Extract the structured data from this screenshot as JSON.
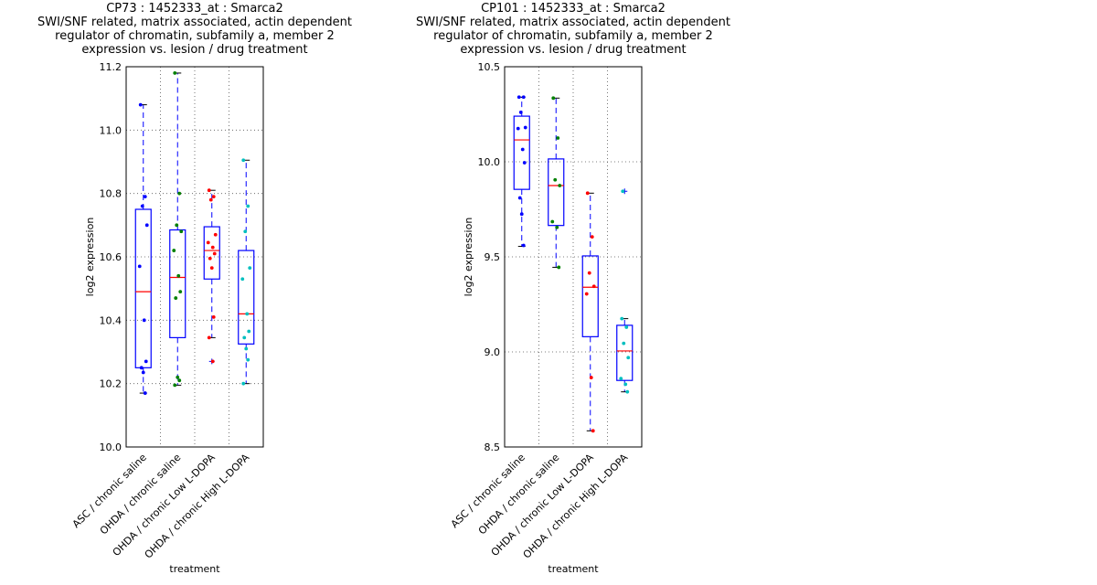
{
  "chart_data": [
    {
      "type": "boxplot",
      "title_lines": [
        "CP73 : 1452333_at : Smarca2",
        "SWI/SNF related, matrix associated, actin dependent regulator of chromatin, subfamily a, member 2",
        "expression vs. lesion / drug treatment"
      ],
      "xlabel": "treatment",
      "ylabel": "log2 expression",
      "ylim": [
        10.0,
        11.2
      ],
      "yticks": [
        "10.0",
        "10.2",
        "10.4",
        "10.6",
        "10.8",
        "11.0",
        "11.2"
      ],
      "categories": [
        "ASC / chronic saline",
        "OHDA / chronic saline",
        "OHDA / chronic Low L-DOPA",
        "OHDA / chronic High L-DOPA"
      ],
      "point_colors": [
        "#0000ff",
        "#008000",
        "#ff0000",
        "#00bfbf"
      ],
      "boxes": [
        {
          "q1": 10.25,
          "median": 10.49,
          "q3": 10.75,
          "whisker_low": 10.17,
          "whisker_high": 11.08,
          "outliers": [],
          "points": [
            11.08,
            10.79,
            10.76,
            10.7,
            10.57,
            10.4,
            10.27,
            10.25,
            10.235,
            10.17
          ]
        },
        {
          "q1": 10.345,
          "median": 10.535,
          "q3": 10.685,
          "whisker_low": 10.195,
          "whisker_high": 11.18,
          "outliers": [],
          "points": [
            11.18,
            10.8,
            10.7,
            10.68,
            10.62,
            10.54,
            10.49,
            10.47,
            10.22,
            10.21,
            10.195
          ]
        },
        {
          "q1": 10.53,
          "median": 10.62,
          "q3": 10.695,
          "whisker_low": 10.345,
          "whisker_high": 10.81,
          "outliers": [
            10.27
          ],
          "points": [
            10.81,
            10.79,
            10.78,
            10.67,
            10.645,
            10.63,
            10.61,
            10.595,
            10.565,
            10.41,
            10.345,
            10.27
          ]
        },
        {
          "q1": 10.325,
          "median": 10.42,
          "q3": 10.62,
          "whisker_low": 10.2,
          "whisker_high": 10.905,
          "outliers": [],
          "points": [
            10.905,
            10.76,
            10.68,
            10.565,
            10.53,
            10.42,
            10.365,
            10.345,
            10.31,
            10.275,
            10.2
          ]
        }
      ]
    },
    {
      "type": "boxplot",
      "title_lines": [
        "CP101 : 1452333_at : Smarca2",
        "SWI/SNF related, matrix associated, actin dependent regulator of chromatin, subfamily a, member 2",
        "expression vs. lesion / drug treatment"
      ],
      "xlabel": "treatment",
      "ylabel": "log2 expression",
      "ylim": [
        8.5,
        10.5
      ],
      "yticks": [
        "8.5",
        "9.0",
        "9.5",
        "10.0",
        "10.5"
      ],
      "categories": [
        "ASC / chronic saline",
        "OHDA / chronic saline",
        "OHDA / chronic Low L-DOPA",
        "OHDA / chronic High L-DOPA"
      ],
      "point_colors": [
        "#0000ff",
        "#008000",
        "#ff0000",
        "#00bfbf"
      ],
      "boxes": [
        {
          "q1": 9.855,
          "median": 10.115,
          "q3": 10.24,
          "whisker_low": 9.555,
          "whisker_high": 10.34,
          "outliers": [],
          "points": [
            10.34,
            10.34,
            10.26,
            10.18,
            10.175,
            10.065,
            9.995,
            9.81,
            9.725,
            9.56
          ]
        },
        {
          "q1": 9.665,
          "median": 9.875,
          "q3": 10.015,
          "whisker_low": 9.445,
          "whisker_high": 10.335,
          "outliers": [],
          "points": [
            10.335,
            10.125,
            9.905,
            9.875,
            9.685,
            9.655,
            9.445
          ]
        },
        {
          "q1": 9.08,
          "median": 9.34,
          "q3": 9.505,
          "whisker_low": 8.585,
          "whisker_high": 9.835,
          "outliers": [],
          "points": [
            9.835,
            9.605,
            9.415,
            9.345,
            9.305,
            8.865,
            8.585
          ]
        },
        {
          "q1": 8.85,
          "median": 9.005,
          "q3": 9.14,
          "whisker_low": 8.79,
          "whisker_high": 9.175,
          "outliers": [
            9.845
          ],
          "points": [
            9.175,
            9.13,
            9.045,
            8.97,
            8.86,
            8.83,
            8.79,
            9.845
          ]
        }
      ]
    }
  ]
}
